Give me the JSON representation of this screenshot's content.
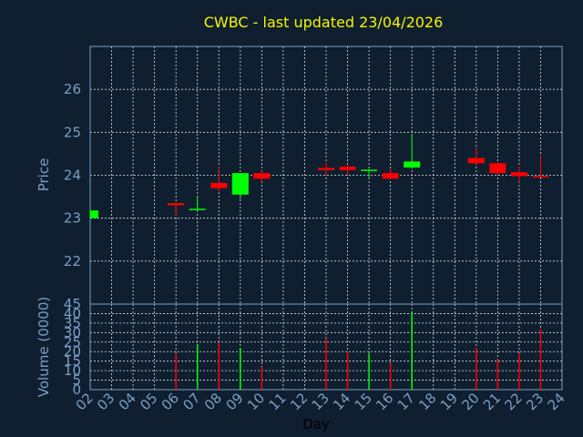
{
  "colors": {
    "background": "#0f1f30",
    "title": "#f5f500",
    "axis": "#7a9fc4",
    "up": "#00ff00",
    "down": "#ff0000",
    "grid": "#ffffff",
    "xlabel": "#000000"
  },
  "chart_data": [
    {
      "type": "candlestick",
      "title": "CWBC - last updated 23/04/2026",
      "ylabel": "Price",
      "ylim": [
        21,
        27
      ],
      "yticks": [
        22,
        23,
        24,
        25,
        26
      ],
      "xlim": [
        2,
        24
      ],
      "grid": true,
      "series": [
        {
          "day": 2,
          "open": 23.0,
          "close": 23.18,
          "high": 23.2,
          "low": 23.0
        },
        {
          "day": 6,
          "open": 23.35,
          "close": 23.3,
          "high": 23.35,
          "low": 23.05
        },
        {
          "day": 7,
          "open": 23.2,
          "close": 23.22,
          "high": 23.5,
          "low": 23.15
        },
        {
          "day": 8,
          "open": 23.82,
          "close": 23.7,
          "high": 24.2,
          "low": 23.62
        },
        {
          "day": 9,
          "open": 23.55,
          "close": 24.05,
          "high": 24.05,
          "low": 23.45
        },
        {
          "day": 10,
          "open": 24.05,
          "close": 23.92,
          "high": 24.1,
          "low": 23.85
        },
        {
          "day": 13,
          "open": 24.17,
          "close": 24.12,
          "high": 24.3,
          "low": 24.0
        },
        {
          "day": 14,
          "open": 24.2,
          "close": 24.12,
          "high": 24.25,
          "low": 24.0
        },
        {
          "day": 15,
          "open": 24.1,
          "close": 24.13,
          "high": 24.15,
          "low": 23.95
        },
        {
          "day": 16,
          "open": 24.05,
          "close": 23.92,
          "high": 24.15,
          "low": 23.9
        },
        {
          "day": 17,
          "open": 24.18,
          "close": 24.32,
          "high": 24.95,
          "low": 24.15
        },
        {
          "day": 20,
          "open": 24.4,
          "close": 24.28,
          "high": 24.65,
          "low": 24.25
        },
        {
          "day": 21,
          "open": 24.28,
          "close": 24.05,
          "high": 24.3,
          "low": 24.0
        },
        {
          "day": 22,
          "open": 24.07,
          "close": 23.98,
          "high": 24.2,
          "low": 23.85
        },
        {
          "day": 23,
          "open": 23.98,
          "close": 23.95,
          "high": 24.45,
          "low": 23.95
        }
      ]
    },
    {
      "type": "bar",
      "ylabel": "Volume (0000)",
      "xlabel": "Day",
      "ylim": [
        0,
        45
      ],
      "yticks": [
        0,
        5,
        10,
        15,
        20,
        25,
        30,
        35,
        40,
        45
      ],
      "xlim": [
        2,
        24
      ],
      "xticks": [
        "02",
        "03",
        "04",
        "05",
        "06",
        "07",
        "08",
        "09",
        "10",
        "11",
        "12",
        "13",
        "14",
        "15",
        "16",
        "17",
        "18",
        "19",
        "20",
        "21",
        "22",
        "23",
        "24"
      ],
      "grid": true,
      "series": [
        {
          "day": 6,
          "value": 19,
          "direction": "down"
        },
        {
          "day": 7,
          "value": 24,
          "direction": "up"
        },
        {
          "day": 8,
          "value": 25,
          "direction": "down"
        },
        {
          "day": 9,
          "value": 22,
          "direction": "up"
        },
        {
          "day": 10,
          "value": 12,
          "direction": "down"
        },
        {
          "day": 13,
          "value": 27,
          "direction": "down"
        },
        {
          "day": 14,
          "value": 20,
          "direction": "down"
        },
        {
          "day": 15,
          "value": 19,
          "direction": "up"
        },
        {
          "day": 16,
          "value": 14,
          "direction": "down"
        },
        {
          "day": 17,
          "value": 41,
          "direction": "up"
        },
        {
          "day": 20,
          "value": 22,
          "direction": "down"
        },
        {
          "day": 21,
          "value": 16,
          "direction": "down"
        },
        {
          "day": 22,
          "value": 19,
          "direction": "down"
        },
        {
          "day": 23,
          "value": 32,
          "direction": "down"
        }
      ]
    }
  ]
}
